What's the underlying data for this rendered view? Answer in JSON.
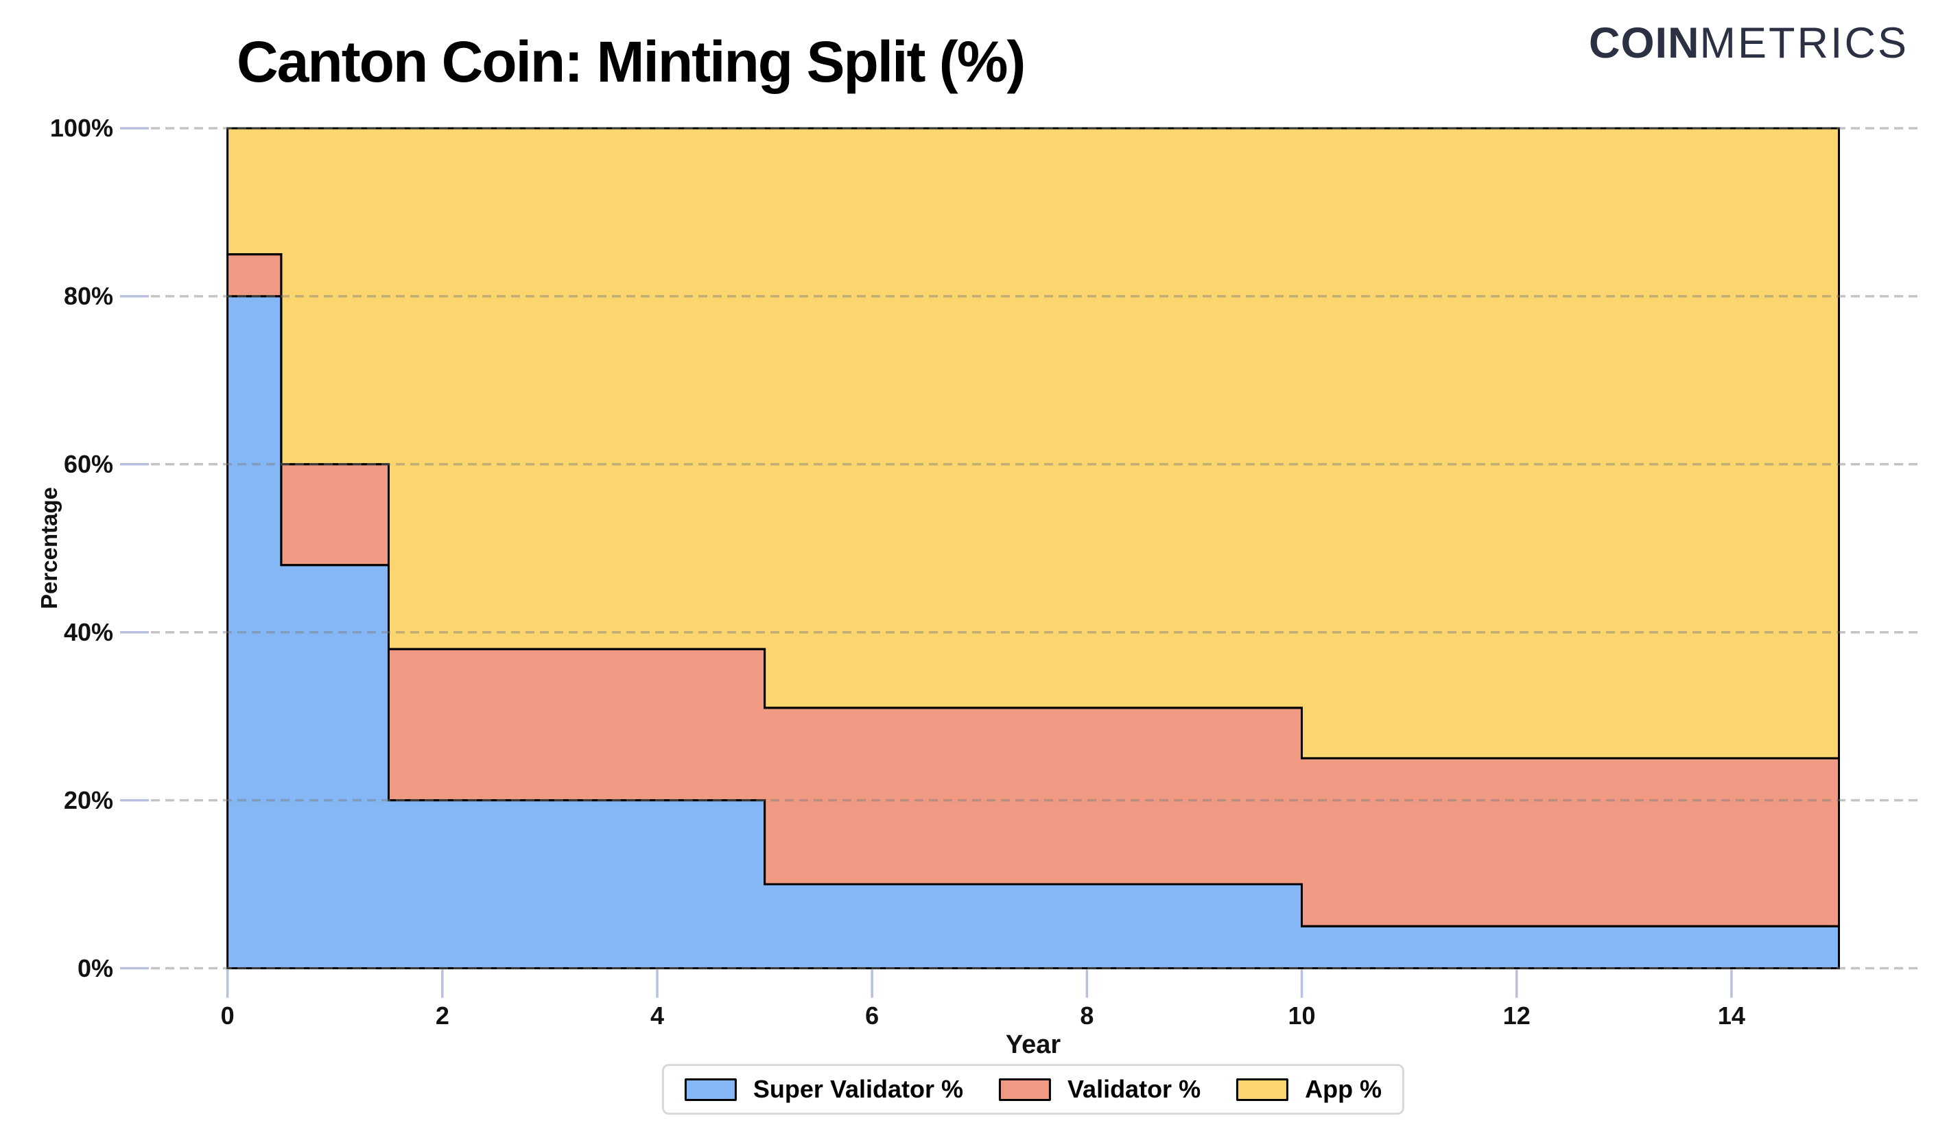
{
  "header": {
    "title": "Canton Coin: Minting Split (%)",
    "logo": {
      "bold": "COIN",
      "light": "METRICS",
      "color": "#2b3043"
    }
  },
  "axes": {
    "x": {
      "label": "Year",
      "ticks": [
        0,
        2,
        4,
        6,
        8,
        10,
        12,
        14
      ],
      "range": [
        -0.713,
        15.744
      ]
    },
    "y": {
      "label": "Percentage",
      "ticks": [
        "0%",
        "20%",
        "40%",
        "60%",
        "80%",
        "100%"
      ],
      "tick_values": [
        0,
        20,
        40,
        60,
        80,
        100
      ],
      "range": [
        0,
        100
      ]
    }
  },
  "legend": {
    "items": [
      {
        "label": "Super Validator %",
        "color": "#85b6f6"
      },
      {
        "label": "Validator %",
        "color": "#f09a83"
      },
      {
        "label": "App %",
        "color": "#fbd66e"
      }
    ]
  },
  "chart_data": {
    "type": "area",
    "stacked": true,
    "step": true,
    "title": "Canton Coin: Minting Split (%)",
    "xlabel": "Year",
    "ylabel": "Percentage",
    "x_breakpoints": [
      0,
      0.5,
      1.5,
      5,
      10,
      15
    ],
    "series": [
      {
        "name": "Super Validator %",
        "values": [
          80,
          48,
          20,
          10,
          5
        ],
        "color": "#85b6f6"
      },
      {
        "name": "Validator %",
        "values": [
          5,
          12,
          18,
          21,
          20
        ],
        "color": "#f09a83"
      },
      {
        "name": "App %",
        "values": [
          15,
          40,
          62,
          69,
          75
        ],
        "color": "#fbd66e"
      }
    ],
    "cumulative_tops": {
      "super_validator": [
        80,
        48,
        20,
        10,
        5
      ],
      "validator": [
        85,
        60,
        38,
        31,
        25
      ],
      "app": [
        100,
        100,
        100,
        100,
        100
      ]
    },
    "xlim": [
      0,
      15
    ],
    "ylim": [
      0,
      100
    ],
    "grid": "horizontal-dashed",
    "legend_position": "bottom",
    "area_outline_color": "#000000",
    "gridline_color": "rgba(125,125,125,0.45)",
    "tick_mark_color": "#b9bfde"
  }
}
